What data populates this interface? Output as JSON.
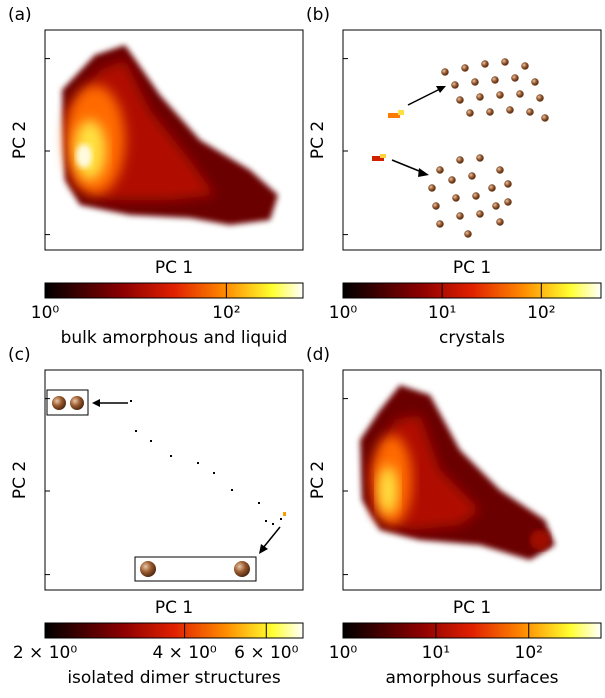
{
  "chart_data": [
    {
      "type": "heatmap",
      "panel_label": "(a)",
      "x_label": "PC 1",
      "y_label": "PC 2",
      "colorbar": {
        "label": "bulk amorphous and liquid",
        "log": true,
        "lim": [
          1,
          700
        ],
        "ticks": [
          {
            "value": 1,
            "label": "10⁰"
          },
          {
            "value": 100,
            "label": "10²"
          }
        ]
      }
    },
    {
      "type": "heatmap",
      "panel_label": "(b)",
      "x_label": "PC 1",
      "y_label": "PC 2",
      "colorbar": {
        "label": "crystals",
        "log": true,
        "lim": [
          1,
          400
        ],
        "ticks": [
          {
            "value": 1,
            "label": "10⁰"
          },
          {
            "value": 10,
            "label": "10¹"
          },
          {
            "value": 100,
            "label": "10²"
          }
        ]
      }
    },
    {
      "type": "heatmap",
      "panel_label": "(c)",
      "x_label": "PC 1",
      "y_label": "PC 2",
      "colorbar": {
        "label": "isolated dimer structures",
        "log": true,
        "lim": [
          2,
          7.2
        ],
        "ticks": [
          {
            "value": 2,
            "label": "2 × 10⁰"
          },
          {
            "value": 4,
            "label": "4 × 10⁰"
          },
          {
            "value": 6,
            "label": "6 × 10⁰"
          }
        ]
      }
    },
    {
      "type": "heatmap",
      "panel_label": "(d)",
      "x_label": "PC 1",
      "y_label": "PC 2",
      "colorbar": {
        "label": "amorphous surfaces",
        "log": true,
        "lim": [
          1,
          600
        ],
        "ticks": [
          {
            "value": 1,
            "label": "10⁰"
          },
          {
            "value": 10,
            "label": "10¹"
          },
          {
            "value": 100,
            "label": "10²"
          }
        ]
      }
    }
  ]
}
